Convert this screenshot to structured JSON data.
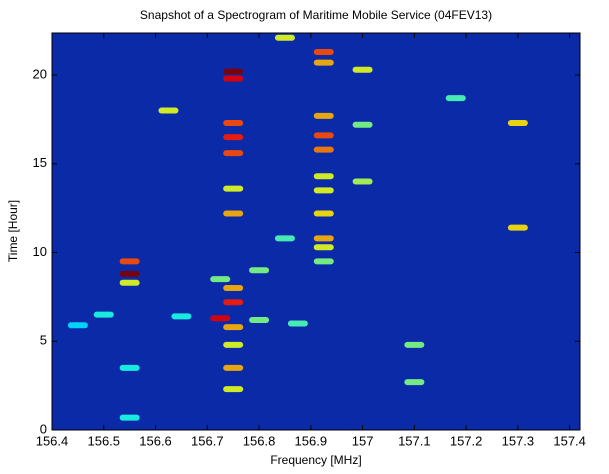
{
  "chart_data": {
    "type": "heatmap",
    "title": "Snapshot of a Spectrogram of Maritime Mobile Service (04FEV13)",
    "xlabel": "Frequency [MHz]",
    "ylabel": "Time [Hour]",
    "xlim": [
      156.4,
      157.42
    ],
    "ylim": [
      0,
      22.37
    ],
    "xticks": [
      156.4,
      156.5,
      156.6,
      156.7,
      156.8,
      156.9,
      157,
      157.1,
      157.2,
      157.3,
      157.4
    ],
    "yticks": [
      0,
      5,
      10,
      15,
      20
    ],
    "background": "#0a2aa8",
    "colormap": "jet",
    "x": [
      156.55,
      156.55,
      156.55,
      156.75,
      156.75,
      156.75,
      156.75,
      156.75,
      156.75,
      156.75,
      156.75,
      156.725,
      156.75,
      156.75,
      156.75,
      156.75,
      156.75,
      156.725,
      156.925,
      156.925,
      156.925,
      156.925,
      156.925,
      156.925,
      156.925,
      156.925,
      156.925,
      156.925,
      156.925,
      156.85,
      156.8,
      156.8,
      157.0,
      157.0,
      157.0,
      157.1,
      157.1,
      157.3,
      157.3,
      156.625,
      156.65,
      156.5,
      156.45,
      156.55,
      156.55,
      157.18,
      156.85,
      156.875
    ],
    "y": [
      8.8,
      9.5,
      8.3,
      20.2,
      19.8,
      17.3,
      16.5,
      15.6,
      13.6,
      12.2,
      7.2,
      6.3,
      5.8,
      3.5,
      2.3,
      4.8,
      8.0,
      8.5,
      21.3,
      20.7,
      17.7,
      16.6,
      15.8,
      14.3,
      13.5,
      12.2,
      10.8,
      10.3,
      9.5,
      22.1,
      9.0,
      6.2,
      20.3,
      14.0,
      17.2,
      4.8,
      2.7,
      17.3,
      11.4,
      18.0,
      6.4,
      6.5,
      5.9,
      3.5,
      0.7,
      18.7,
      10.8,
      6.0
    ],
    "values": [
      1.0,
      0.8,
      0.6,
      1.0,
      0.9,
      0.8,
      0.85,
      0.8,
      0.6,
      0.7,
      0.85,
      0.9,
      0.7,
      0.7,
      0.6,
      0.6,
      0.7,
      0.5,
      0.8,
      0.7,
      0.7,
      0.8,
      0.75,
      0.6,
      0.6,
      0.65,
      0.7,
      0.6,
      0.5,
      0.6,
      0.5,
      0.5,
      0.6,
      0.55,
      0.5,
      0.5,
      0.5,
      0.65,
      0.65,
      0.6,
      0.4,
      0.4,
      0.35,
      0.4,
      0.4,
      0.45,
      0.45,
      0.45
    ]
  }
}
